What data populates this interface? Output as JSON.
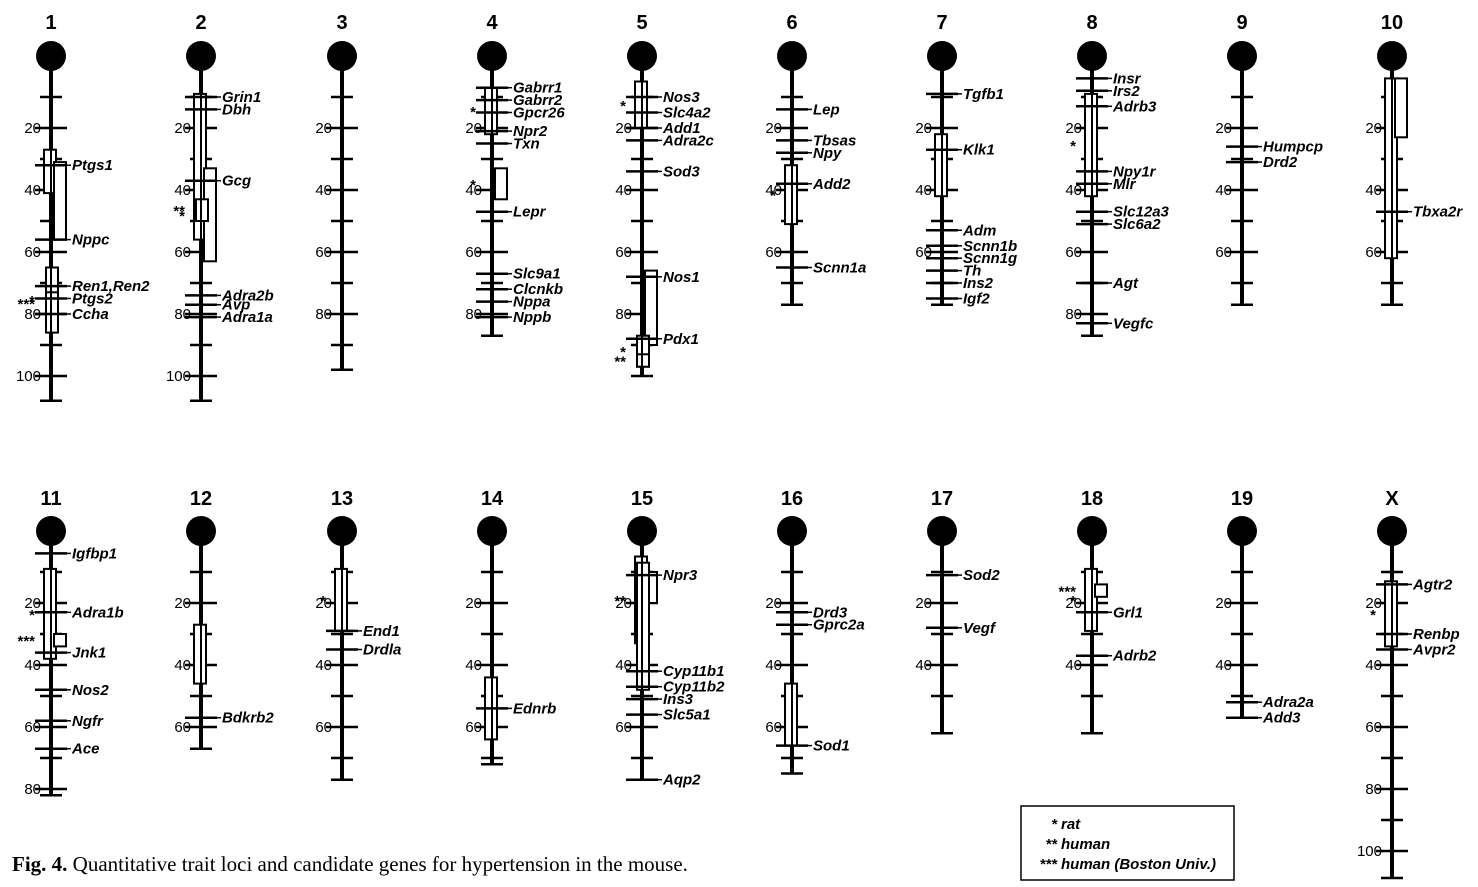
{
  "figure": {
    "caption_label": "Fig. 4.",
    "caption_text": " Quantitative trait loci and candidate genes for hypertension in the mouse."
  },
  "legend": [
    {
      "symbol": "*",
      "label": "rat"
    },
    {
      "symbol": "**",
      "label": "human"
    },
    {
      "symbol": "***",
      "label": "human (Boston Univ.)"
    }
  ],
  "chromosomes": [
    {
      "id": "1",
      "length": 108,
      "ticks": [
        20,
        40,
        60,
        80,
        100
      ],
      "minor": [
        10,
        30,
        50,
        70,
        90
      ],
      "qtls": [
        {
          "start": 27,
          "end": 41,
          "star": ""
        },
        {
          "start": 31,
          "end": 56,
          "star": ""
        },
        {
          "start": 65,
          "end": 86,
          "star": "*"
        },
        {
          "start": 73,
          "end": 80,
          "star": "***"
        }
      ],
      "genes": [
        {
          "name": "Ptgs1",
          "pos": 32
        },
        {
          "name": "Nppc",
          "pos": 56
        },
        {
          "name": "Ren1,Ren2",
          "pos": 71
        },
        {
          "name": "Ptgs2",
          "pos": 75
        },
        {
          "name": "Ccha",
          "pos": 80
        }
      ]
    },
    {
      "id": "2",
      "length": 108,
      "ticks": [
        20,
        40,
        60,
        80,
        100
      ],
      "minor": [
        10,
        30,
        50,
        70,
        90
      ],
      "qtls": [
        {
          "start": 9,
          "end": 56,
          "star": ""
        },
        {
          "start": 33,
          "end": 63,
          "star": "*"
        },
        {
          "start": 43,
          "end": 50,
          "star": "**"
        }
      ],
      "genes": [
        {
          "name": "Grin1",
          "pos": 10
        },
        {
          "name": "Dbh",
          "pos": 14
        },
        {
          "name": "Gcg",
          "pos": 37
        },
        {
          "name": "Adra2b",
          "pos": 74
        },
        {
          "name": "Avp",
          "pos": 77
        },
        {
          "name": "Adra1a",
          "pos": 81
        }
      ]
    },
    {
      "id": "3",
      "length": 98,
      "ticks": [
        20,
        40,
        60,
        80
      ],
      "minor": [
        10,
        30,
        50,
        70,
        90
      ],
      "qtls": [],
      "genes": []
    },
    {
      "id": "4",
      "length": 87,
      "ticks": [
        20,
        40,
        60,
        80
      ],
      "minor": [
        10,
        30,
        50,
        70
      ],
      "qtls": [
        {
          "start": 7,
          "end": 22,
          "star": "*"
        },
        {
          "start": 33,
          "end": 43,
          "star": "*"
        }
      ],
      "genes": [
        {
          "name": "Gabrr1",
          "pos": 7
        },
        {
          "name": "Gabrr2",
          "pos": 11
        },
        {
          "name": "Gpcr26",
          "pos": 15
        },
        {
          "name": "Npr2",
          "pos": 21
        },
        {
          "name": "Txn",
          "pos": 25
        },
        {
          "name": "Lepr",
          "pos": 47
        },
        {
          "name": "Slc9a1",
          "pos": 67
        },
        {
          "name": "Clcnkb",
          "pos": 72
        },
        {
          "name": "Nppa",
          "pos": 76
        },
        {
          "name": "Nppb",
          "pos": 81
        }
      ]
    },
    {
      "id": "5",
      "length": 100,
      "ticks": [
        20,
        40,
        60,
        80
      ],
      "minor": [
        10,
        30,
        50,
        70,
        90
      ],
      "qtls": [
        {
          "start": 5,
          "end": 20,
          "star": "*"
        },
        {
          "start": 66,
          "end": 90,
          "star": ""
        },
        {
          "start": 87,
          "end": 97,
          "star": "*"
        },
        {
          "start": 93,
          "end": 97,
          "star": "**"
        }
      ],
      "genes": [
        {
          "name": "Nos3",
          "pos": 10
        },
        {
          "name": "Slc4a2",
          "pos": 15
        },
        {
          "name": "Add1",
          "pos": 20
        },
        {
          "name": "Adra2c",
          "pos": 24
        },
        {
          "name": "Sod3",
          "pos": 34
        },
        {
          "name": "Nos1",
          "pos": 68
        },
        {
          "name": "Pdx1",
          "pos": 88
        }
      ]
    },
    {
      "id": "6",
      "length": 77,
      "ticks": [
        20,
        40,
        60
      ],
      "minor": [
        10,
        30,
        50,
        70
      ],
      "qtls": [
        {
          "start": 32,
          "end": 51,
          "star": "*"
        }
      ],
      "genes": [
        {
          "name": "Lep",
          "pos": 14
        },
        {
          "name": "Tbsas",
          "pos": 24
        },
        {
          "name": "Npy",
          "pos": 28
        },
        {
          "name": "Add2",
          "pos": 38
        },
        {
          "name": "Scnn1a",
          "pos": 65
        }
      ]
    },
    {
      "id": "7",
      "length": 77,
      "ticks": [
        20,
        40,
        60
      ],
      "minor": [
        10,
        30,
        50,
        70
      ],
      "qtls": [
        {
          "start": 22,
          "end": 42,
          "star": ""
        }
      ],
      "genes": [
        {
          "name": "Tgfb1",
          "pos": 9
        },
        {
          "name": "Klk1",
          "pos": 27
        },
        {
          "name": "Adm",
          "pos": 53
        },
        {
          "name": "Scnn1b",
          "pos": 58
        },
        {
          "name": "Scnn1g",
          "pos": 62
        },
        {
          "name": "Th",
          "pos": 66
        },
        {
          "name": "Ins2",
          "pos": 70
        },
        {
          "name": "Igf2",
          "pos": 75
        }
      ]
    },
    {
      "id": "8",
      "length": 87,
      "ticks": [
        20,
        40,
        60,
        80
      ],
      "minor": [
        10,
        30,
        50,
        70
      ],
      "qtls": [
        {
          "start": 9,
          "end": 42,
          "star": "*"
        }
      ],
      "genes": [
        {
          "name": "Insr",
          "pos": 4
        },
        {
          "name": "Irs2",
          "pos": 8
        },
        {
          "name": "Adrb3",
          "pos": 13
        },
        {
          "name": "Npy1r",
          "pos": 34
        },
        {
          "name": "Mlr",
          "pos": 38
        },
        {
          "name": "Slc12a3",
          "pos": 47
        },
        {
          "name": "Slc6a2",
          "pos": 51
        },
        {
          "name": "Agt",
          "pos": 70
        },
        {
          "name": "Vegfc",
          "pos": 83
        }
      ]
    },
    {
      "id": "9",
      "length": 77,
      "ticks": [
        20,
        40,
        60
      ],
      "minor": [
        10,
        30,
        50,
        70
      ],
      "qtls": [],
      "genes": [
        {
          "name": "Humpcp",
          "pos": 26
        },
        {
          "name": "Drd2",
          "pos": 31
        }
      ]
    },
    {
      "id": "10",
      "length": 77,
      "ticks": [
        20,
        40,
        60
      ],
      "minor": [
        10,
        30,
        50,
        70
      ],
      "qtls": [
        {
          "start": 4,
          "end": 62,
          "star": ""
        },
        {
          "start": 4,
          "end": 23,
          "star": ""
        }
      ],
      "genes": [
        {
          "name": "Tbxa2r",
          "pos": 47
        }
      ]
    },
    {
      "id": "11",
      "length": 82,
      "ticks": [
        20,
        40,
        60,
        80
      ],
      "minor": [
        10,
        30,
        50,
        70
      ],
      "qtls": [
        {
          "start": 9,
          "end": 38,
          "star": "*"
        },
        {
          "start": 30,
          "end": 34,
          "star": "***"
        }
      ],
      "genes": [
        {
          "name": "Igfbp1",
          "pos": 4
        },
        {
          "name": "Adra1b",
          "pos": 23
        },
        {
          "name": "Jnk1",
          "pos": 36
        },
        {
          "name": "Nos2",
          "pos": 48
        },
        {
          "name": "Ngfr",
          "pos": 58
        },
        {
          "name": "Ace",
          "pos": 67
        }
      ]
    },
    {
      "id": "12",
      "length": 67,
      "ticks": [
        20,
        40,
        60
      ],
      "minor": [
        10,
        30,
        50
      ],
      "qtls": [
        {
          "start": 27,
          "end": 46,
          "star": ""
        }
      ],
      "genes": [
        {
          "name": "Bdkrb2",
          "pos": 57
        }
      ]
    },
    {
      "id": "13",
      "length": 77,
      "ticks": [
        20,
        40,
        60
      ],
      "minor": [
        10,
        30,
        50,
        70
      ],
      "qtls": [
        {
          "start": 9,
          "end": 29,
          "star": "*"
        }
      ],
      "genes": [
        {
          "name": "End1",
          "pos": 29
        },
        {
          "name": "Drdla",
          "pos": 35
        }
      ]
    },
    {
      "id": "14",
      "length": 72,
      "ticks": [
        20,
        40,
        60
      ],
      "minor": [
        10,
        30,
        50,
        70
      ],
      "qtls": [
        {
          "start": 44,
          "end": 64,
          "star": ""
        }
      ],
      "genes": [
        {
          "name": "Ednrb",
          "pos": 54
        }
      ]
    },
    {
      "id": "15",
      "length": 77,
      "ticks": [
        20,
        40,
        60
      ],
      "minor": [
        10,
        30,
        50,
        70
      ],
      "qtls": [
        {
          "start": 5,
          "end": 33,
          "star": "**"
        },
        {
          "start": 10,
          "end": 20,
          "star": ""
        },
        {
          "start": 7,
          "end": 48,
          "star": ""
        }
      ],
      "genes": [
        {
          "name": "Npr3",
          "pos": 11
        },
        {
          "name": "Cyp11b1",
          "pos": 42
        },
        {
          "name": "Cyp11b2",
          "pos": 47
        },
        {
          "name": "Ins3",
          "pos": 51
        },
        {
          "name": "Slc5a1",
          "pos": 56
        },
        {
          "name": "Aqp2",
          "pos": 77
        }
      ]
    },
    {
      "id": "16",
      "length": 75,
      "ticks": [
        20,
        40,
        60
      ],
      "minor": [
        10,
        30,
        50,
        70
      ],
      "qtls": [
        {
          "start": 46,
          "end": 66,
          "star": ""
        }
      ],
      "genes": [
        {
          "name": "Drd3",
          "pos": 23
        },
        {
          "name": "Gprc2a",
          "pos": 27
        },
        {
          "name": "Sod1",
          "pos": 66
        }
      ]
    },
    {
      "id": "17",
      "length": 62,
      "ticks": [
        20,
        40
      ],
      "minor": [
        10,
        30,
        50
      ],
      "qtls": [],
      "genes": [
        {
          "name": "Sod2",
          "pos": 11
        },
        {
          "name": "Vegf",
          "pos": 28
        }
      ]
    },
    {
      "id": "18",
      "length": 62,
      "ticks": [
        20,
        40
      ],
      "minor": [
        10,
        30,
        50
      ],
      "qtls": [
        {
          "start": 9,
          "end": 29,
          "star": "*"
        },
        {
          "start": 14,
          "end": 18,
          "star": "***"
        }
      ],
      "genes": [
        {
          "name": "Grl1",
          "pos": 23
        },
        {
          "name": "Adrb2",
          "pos": 37
        }
      ]
    },
    {
      "id": "19",
      "length": 57,
      "ticks": [
        20,
        40
      ],
      "minor": [
        10,
        30,
        50
      ],
      "qtls": [],
      "genes": [
        {
          "name": "Adra2a",
          "pos": 52
        },
        {
          "name": "Add3",
          "pos": 57
        }
      ]
    },
    {
      "id": "X",
      "length": 112,
      "ticks": [
        20,
        40,
        60,
        80,
        100
      ],
      "minor": [
        10,
        30,
        50,
        70,
        90
      ],
      "qtls": [
        {
          "start": 13,
          "end": 34,
          "star": "*"
        }
      ],
      "genes": [
        {
          "name": "Agtr2",
          "pos": 14
        },
        {
          "name": "Renbp",
          "pos": 30
        },
        {
          "name": "Avpr2",
          "pos": 35
        }
      ]
    }
  ]
}
